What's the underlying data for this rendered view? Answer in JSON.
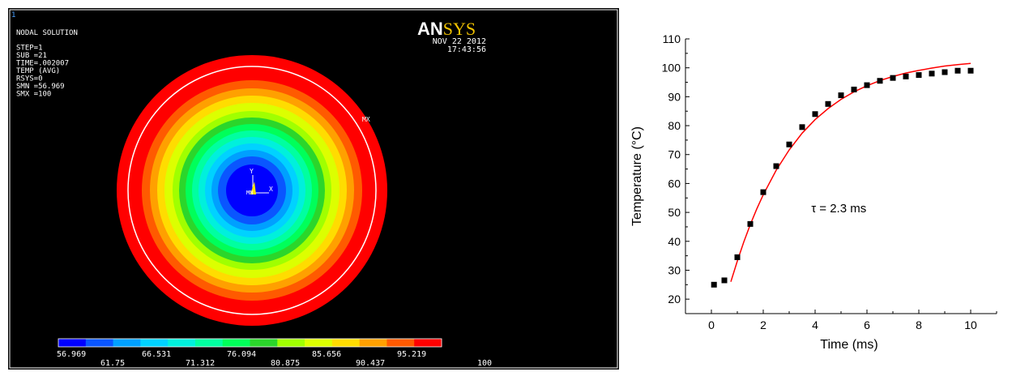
{
  "ansys": {
    "viewport_number": "1",
    "logo": "ANSYS",
    "header_lines": [
      "NODAL SOLUTION",
      "STEP=1",
      "SUB =21",
      "TIME=.002007",
      "TEMP      (AVG)",
      "RSYS=0",
      "SMN =56.969",
      "SMX =100"
    ],
    "date": "NOV 22 2012",
    "time": "17:43:56",
    "mx_label": "MX",
    "mn_label": "MN",
    "axis_y": "Y",
    "axis_x": "X",
    "colors": {
      "background": "#000000",
      "logo_an": "#ffffff",
      "logo_sys": "#f2c200",
      "contour_bands": [
        "#0000ff",
        "#0a56ff",
        "#00a0ff",
        "#00d2ff",
        "#00f0dc",
        "#00ffa0",
        "#00ff5a",
        "#2bd62b",
        "#a0ff00",
        "#dcff00",
        "#ffdc00",
        "#ffa000",
        "#ff5a00",
        "#ff0000"
      ]
    },
    "legend_top": [
      "56.969",
      "66.531",
      "76.094",
      "85.656",
      "95.219"
    ],
    "legend_bottom": [
      "61.75",
      "71.312",
      "80.875",
      "90.437",
      "100"
    ]
  },
  "chart_data": {
    "type": "scatter",
    "xlabel": "Time (ms)",
    "ylabel": "Temperature (°C)",
    "xlim": [
      -1,
      11
    ],
    "ylim": [
      15,
      110
    ],
    "xticks": [
      0,
      2,
      4,
      6,
      8,
      10
    ],
    "yticks": [
      20,
      30,
      40,
      50,
      60,
      70,
      80,
      90,
      100,
      110
    ],
    "annotation": "τ = 2.3 ms",
    "grid": false,
    "series": [
      {
        "marker": "square",
        "color": "#000000",
        "x": [
          0.1,
          0.5,
          1.0,
          1.5,
          2.0,
          2.5,
          3.0,
          3.5,
          4.0,
          4.5,
          5.0,
          5.5,
          6.0,
          6.5,
          7.0,
          7.5,
          8.0,
          8.5,
          9.0,
          9.5,
          10.0
        ],
        "y": [
          25,
          26.5,
          34.5,
          46,
          57,
          66,
          73.5,
          79.5,
          84,
          87.5,
          90.5,
          92.5,
          94,
          95.5,
          96.5,
          97,
          97.5,
          98,
          98.5,
          99,
          99
        ]
      },
      {
        "type": "line",
        "color": "#ff0000",
        "x": [
          0.75,
          1.0,
          1.25,
          1.5,
          1.75,
          2.0,
          2.5,
          3.0,
          3.5,
          4.0,
          4.5,
          5.0,
          5.5,
          6.0,
          6.5,
          7.0,
          7.5,
          8.0,
          8.5,
          9.0,
          9.5,
          10.0
        ],
        "y": [
          26,
          33.2,
          39.8,
          45.8,
          51.2,
          56.1,
          64.6,
          71.6,
          77.4,
          82.1,
          85.9,
          89.1,
          91.7,
          93.8,
          95.6,
          97.0,
          98.2,
          99.1,
          99.9,
          100.6,
          101.1,
          101.5
        ]
      }
    ]
  }
}
